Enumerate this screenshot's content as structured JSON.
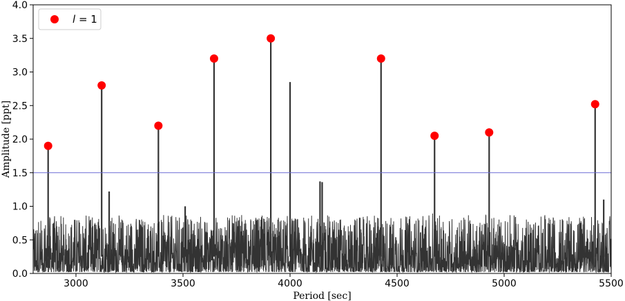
{
  "chart_data": {
    "type": "line",
    "xlabel": "Period [sec]",
    "ylabel": "Amplitude [ppt]",
    "xlim": [
      2800,
      5500
    ],
    "ylim": [
      0,
      4.0
    ],
    "xticks": [
      3000,
      3500,
      4000,
      4500,
      5000,
      5500
    ],
    "yticks": [
      0.0,
      0.5,
      1.0,
      1.5,
      2.0,
      2.5,
      3.0,
      3.5,
      4.0
    ],
    "grid": false,
    "legend_position": "top-left",
    "threshold": {
      "y": 1.5,
      "color": "#6b6bd6"
    },
    "series": [
      {
        "kind": "spectrum",
        "color": "#333333",
        "peaks": [
          {
            "x": 2870,
            "y": 1.9
          },
          {
            "x": 3120,
            "y": 2.8
          },
          {
            "x": 3385,
            "y": 2.2
          },
          {
            "x": 3645,
            "y": 3.2
          },
          {
            "x": 3910,
            "y": 3.5
          },
          {
            "x": 4000,
            "y": 2.85
          },
          {
            "x": 4425,
            "y": 3.2
          },
          {
            "x": 4675,
            "y": 2.05
          },
          {
            "x": 4930,
            "y": 2.1
          },
          {
            "x": 5425,
            "y": 2.52
          },
          {
            "x": 4140,
            "y": 1.37
          },
          {
            "x": 4150,
            "y": 1.36
          },
          {
            "x": 3155,
            "y": 1.22
          },
          {
            "x": 5465,
            "y": 1.1
          },
          {
            "x": 3510,
            "y": 1.0
          }
        ]
      },
      {
        "name": "l = 1",
        "kind": "markers",
        "color": "#ff0000",
        "x": [
          2870,
          3120,
          3385,
          3645,
          3910,
          4425,
          4675,
          4930,
          5425
        ],
        "y": [
          1.9,
          2.8,
          2.2,
          3.2,
          3.5,
          3.2,
          2.05,
          2.1,
          2.52
        ]
      }
    ]
  },
  "legend": {
    "label_var": "l",
    "label_rest": " = 1",
    "marker_color": "#ff0000"
  }
}
